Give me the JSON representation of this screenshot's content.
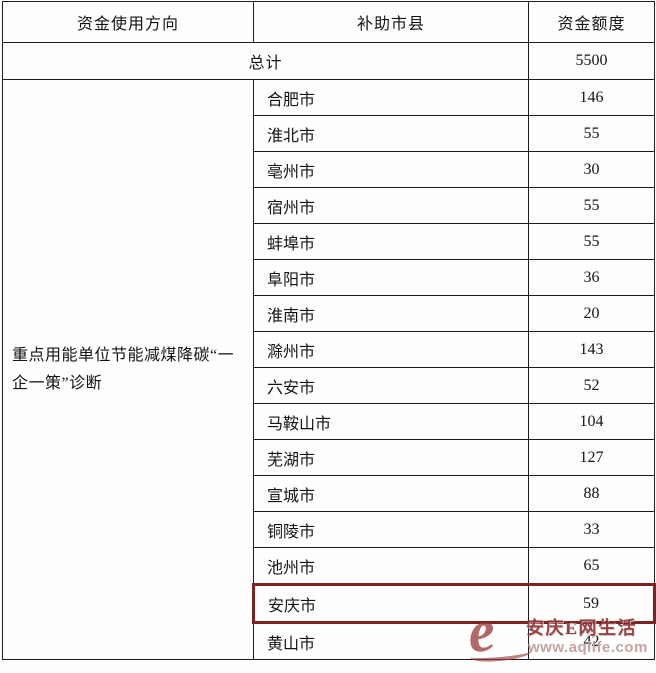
{
  "table": {
    "headers": [
      "资金使用方向",
      "补助市县",
      "资金额度"
    ],
    "total_row": {
      "label": "总计",
      "amount": "5500"
    },
    "direction_label": "重点用能单位节能减煤降碳“一企一策”诊断",
    "rows": [
      {
        "city": "合肥市",
        "amount": "146",
        "highlighted": false
      },
      {
        "city": "淮北市",
        "amount": "55",
        "highlighted": false
      },
      {
        "city": "亳州市",
        "amount": "30",
        "highlighted": false
      },
      {
        "city": "宿州市",
        "amount": "55",
        "highlighted": false
      },
      {
        "city": "蚌埠市",
        "amount": "55",
        "highlighted": false
      },
      {
        "city": "阜阳市",
        "amount": "36",
        "highlighted": false
      },
      {
        "city": "淮南市",
        "amount": "20",
        "highlighted": false
      },
      {
        "city": "滁州市",
        "amount": "143",
        "highlighted": false
      },
      {
        "city": "六安市",
        "amount": "52",
        "highlighted": false
      },
      {
        "city": "马鞍山市",
        "amount": "104",
        "highlighted": false
      },
      {
        "city": "芜湖市",
        "amount": "127",
        "highlighted": false
      },
      {
        "city": "宣城市",
        "amount": "88",
        "highlighted": false
      },
      {
        "city": "铜陵市",
        "amount": "33",
        "highlighted": false
      },
      {
        "city": "池州市",
        "amount": "65",
        "highlighted": false
      },
      {
        "city": "安庆市",
        "amount": "59",
        "highlighted": true
      },
      {
        "city": "黄山市",
        "amount": "42",
        "highlighted": false
      }
    ],
    "highlighted_city": "安庆市",
    "highlight_border_color": "#7d2323",
    "grid_border_color": "#1d1d1d"
  },
  "watermark": {
    "logo_glyph": "e",
    "site_name": "安庆E网生活",
    "site_url": "www.aqlife.com",
    "color": "#8a3535"
  }
}
